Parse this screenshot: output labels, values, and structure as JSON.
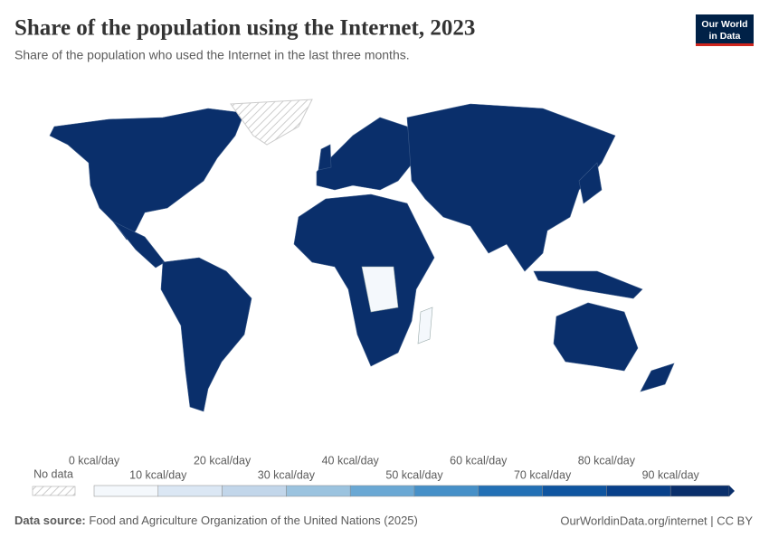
{
  "header": {
    "title": "Share of the population using the Internet, 2023",
    "subtitle": "Share of the population who used the Internet in the last three months.",
    "logo": [
      "Our World",
      "in Data"
    ]
  },
  "legend": {
    "no_data": "No data",
    "labels": [
      "0 kcal/day",
      "10 kcal/day",
      "20 kcal/day",
      "30 kcal/day",
      "40 kcal/day",
      "50 kcal/day",
      "60 kcal/day",
      "70 kcal/day",
      "80 kcal/day",
      "90 kcal/day"
    ],
    "colors": [
      "#f4f8fc",
      "#dbe7f4",
      "#c2d6ea",
      "#9bc3df",
      "#6aa8d4",
      "#4690c8",
      "#2270b5",
      "#0f55a0",
      "#08408a",
      "#0a2f6b"
    ]
  },
  "footer": {
    "source_label": "Data source:",
    "source": "Food and Agriculture Organization of the United Nations (2025)",
    "link": "OurWorldinData.org/internet | CC BY"
  }
}
